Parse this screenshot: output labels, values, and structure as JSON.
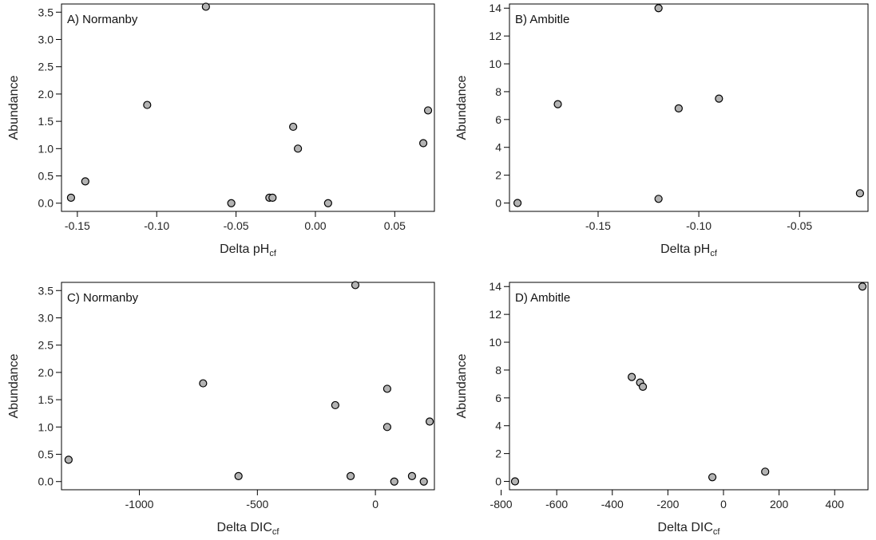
{
  "chart_data": [
    {
      "type": "scatter",
      "title": "A) Normanby",
      "xlabel": "Delta pH",
      "xlabel_sub": "cf",
      "ylabel": "Abundance",
      "xlim": [
        -0.16,
        0.075
      ],
      "ylim": [
        -0.15,
        3.65
      ],
      "xticks": [
        -0.15,
        -0.1,
        -0.05,
        0.0,
        0.05
      ],
      "xtick_labels": [
        "-0.15",
        "-0.10",
        "-0.05",
        "0.00",
        "0.05"
      ],
      "yticks": [
        0,
        0.5,
        1,
        1.5,
        2,
        2.5,
        3,
        3.5
      ],
      "ytick_labels": [
        "0.0",
        "0.5",
        "1.0",
        "1.5",
        "2.0",
        "2.5",
        "3.0",
        "3.5"
      ],
      "grid": false,
      "points": [
        {
          "x": -0.154,
          "y": 0.1
        },
        {
          "x": -0.145,
          "y": 0.4
        },
        {
          "x": -0.106,
          "y": 1.8
        },
        {
          "x": -0.069,
          "y": 3.6
        },
        {
          "x": -0.053,
          "y": 0.0
        },
        {
          "x": -0.029,
          "y": 0.1
        },
        {
          "x": -0.027,
          "y": 0.1
        },
        {
          "x": -0.014,
          "y": 1.4
        },
        {
          "x": -0.011,
          "y": 1.0
        },
        {
          "x": 0.008,
          "y": 0.0
        },
        {
          "x": 0.068,
          "y": 1.1
        },
        {
          "x": 0.071,
          "y": 1.7
        }
      ]
    },
    {
      "type": "scatter",
      "title": "B) Ambitle",
      "xlabel": "Delta pH",
      "xlabel_sub": "cf",
      "ylabel": "Abundance",
      "xlim": [
        -0.194,
        -0.016
      ],
      "ylim": [
        -0.6,
        14.3
      ],
      "xticks": [
        -0.15,
        -0.1,
        -0.05
      ],
      "xtick_labels": [
        "-0.15",
        "-0.10",
        "-0.05"
      ],
      "yticks": [
        0,
        2,
        4,
        6,
        8,
        10,
        12,
        14
      ],
      "ytick_labels": [
        "0",
        "2",
        "4",
        "6",
        "8",
        "10",
        "12",
        "14"
      ],
      "grid": false,
      "points": [
        {
          "x": -0.19,
          "y": 0.0
        },
        {
          "x": -0.17,
          "y": 7.1
        },
        {
          "x": -0.12,
          "y": 14.0
        },
        {
          "x": -0.12,
          "y": 0.3
        },
        {
          "x": -0.11,
          "y": 6.8
        },
        {
          "x": -0.09,
          "y": 7.5
        },
        {
          "x": -0.02,
          "y": 0.7
        }
      ]
    },
    {
      "type": "scatter",
      "title": "C) Normanby",
      "xlabel": "Delta DIC",
      "xlabel_sub": "cf",
      "ylabel": "Abundance",
      "xlim": [
        -1330,
        250
      ],
      "ylim": [
        -0.15,
        3.65
      ],
      "xticks": [
        -1000,
        -500,
        0
      ],
      "xtick_labels": [
        "-1000",
        "-500",
        "0"
      ],
      "yticks": [
        0,
        0.5,
        1,
        1.5,
        2,
        2.5,
        3,
        3.5
      ],
      "ytick_labels": [
        "0.0",
        "0.5",
        "1.0",
        "1.5",
        "2.0",
        "2.5",
        "3.0",
        "3.5"
      ],
      "grid": false,
      "points": [
        {
          "x": -1300,
          "y": 0.4
        },
        {
          "x": -730,
          "y": 1.8
        },
        {
          "x": -580,
          "y": 0.1
        },
        {
          "x": -170,
          "y": 1.4
        },
        {
          "x": -105,
          "y": 0.1
        },
        {
          "x": -85,
          "y": 3.6
        },
        {
          "x": 50,
          "y": 1.7
        },
        {
          "x": 50,
          "y": 1.0
        },
        {
          "x": 80,
          "y": 0.0
        },
        {
          "x": 155,
          "y": 0.1
        },
        {
          "x": 205,
          "y": 0.0
        },
        {
          "x": 230,
          "y": 1.1
        }
      ]
    },
    {
      "type": "scatter",
      "title": "D) Ambitle",
      "xlabel": "Delta DIC",
      "xlabel_sub": "cf",
      "ylabel": "Abundance",
      "xlim": [
        -770,
        520
      ],
      "ylim": [
        -0.6,
        14.3
      ],
      "xticks": [
        -800,
        -600,
        -400,
        -200,
        0,
        200,
        400
      ],
      "xtick_labels": [
        "-800",
        "-600",
        "-400",
        "-200",
        "0",
        "200",
        "400"
      ],
      "yticks": [
        0,
        2,
        4,
        6,
        8,
        10,
        12,
        14
      ],
      "ytick_labels": [
        "0",
        "2",
        "4",
        "6",
        "8",
        "10",
        "12",
        "14"
      ],
      "grid": false,
      "points": [
        {
          "x": -750,
          "y": 0.0
        },
        {
          "x": -330,
          "y": 7.5
        },
        {
          "x": -300,
          "y": 7.1
        },
        {
          "x": -290,
          "y": 6.8
        },
        {
          "x": -40,
          "y": 0.3
        },
        {
          "x": 150,
          "y": 0.7
        },
        {
          "x": 500,
          "y": 14.0
        }
      ]
    }
  ]
}
